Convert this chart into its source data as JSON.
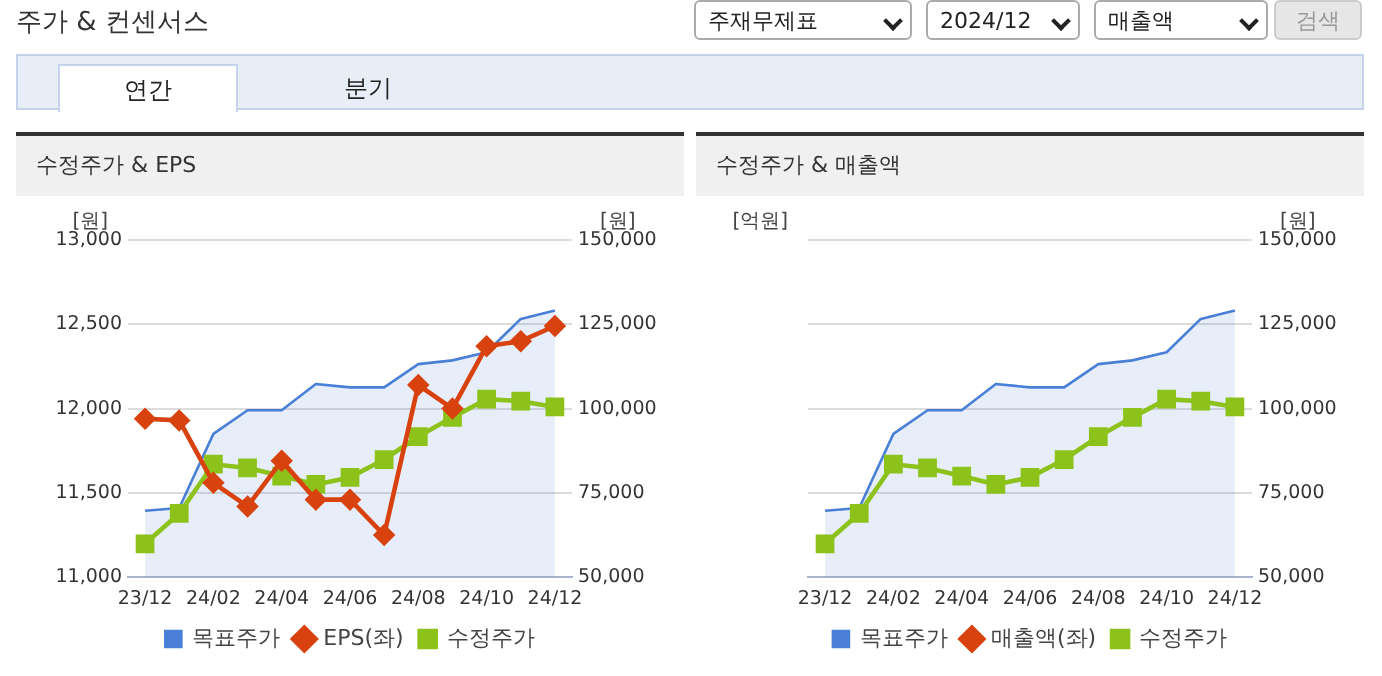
{
  "chart_data": [
    {
      "type": "other",
      "title": "주가 & 컨센서스",
      "annotations": [
        "주재무제표",
        "2024/12",
        "매출액",
        "검색",
        "연간",
        "분기"
      ]
    },
    {
      "type": "line",
      "title": "수정주가 & EPS",
      "ylabel": "[원]",
      "y2label": "[원]",
      "categories": [
        "23/12",
        null,
        "24/02",
        null,
        "24/04",
        null,
        "24/06",
        null,
        "24/08",
        null,
        "24/10",
        null,
        "24/12"
      ],
      "series": [
        {
          "name": "목표주가",
          "type": "area",
          "axis": "y2",
          "color": "#4a7fd8",
          "marker": "none",
          "values": [
            69700,
            70500,
            92500,
            99500,
            99500,
            107300,
            106300,
            106300,
            113200,
            114300,
            116700,
            126600,
            129100
          ]
        },
        {
          "name": "EPS(좌)",
          "type": "line",
          "axis": "y",
          "color": "#d8420e",
          "marker": "diamond",
          "values": [
            11940,
            11930,
            11560,
            11420,
            11690,
            11460,
            11460,
            11250,
            12140,
            12000,
            12370,
            12400,
            12490
          ]
        },
        {
          "name": "수정주가",
          "type": "line",
          "axis": "y2",
          "color": "#8cc21a",
          "marker": "square",
          "values": [
            59900,
            68900,
            83500,
            82400,
            80000,
            77500,
            79600,
            84900,
            91700,
            97400,
            102800,
            102200,
            100500
          ]
        }
      ],
      "ylim": [
        11000,
        13000
      ],
      "yticks": [
        {
          "value": 11000,
          "label": "11,000"
        },
        {
          "value": 11500,
          "label": "11,500"
        },
        {
          "value": 12000,
          "label": "12,000"
        },
        {
          "value": 12500,
          "label": "12,500"
        },
        {
          "value": 13000,
          "label": "13,000"
        }
      ],
      "y2lim": [
        50000,
        150000
      ],
      "y2ticks": [
        {
          "value": 50000,
          "label": "50,000"
        },
        {
          "value": 75000,
          "label": "75,000"
        },
        {
          "value": 100000,
          "label": "100,000"
        },
        {
          "value": 125000,
          "label": "125,000"
        },
        {
          "value": 150000,
          "label": "150,000"
        }
      ],
      "grid": "y",
      "legend": "bottom"
    },
    {
      "type": "line",
      "title": "수정주가 & 매출액",
      "ylabel": "[억원]",
      "y2label": "[원]",
      "categories": [
        "23/12",
        null,
        "24/02",
        null,
        "24/04",
        null,
        "24/06",
        null,
        "24/08",
        null,
        "24/10",
        null,
        "24/12"
      ],
      "series": [
        {
          "name": "목표주가",
          "type": "area",
          "axis": "y2",
          "color": "#4a7fd8",
          "marker": "none",
          "values": [
            69700,
            70500,
            92500,
            99500,
            99500,
            107300,
            106300,
            106300,
            113200,
            114300,
            116700,
            126600,
            129100
          ]
        },
        {
          "name": "매출액(좌)",
          "type": "line",
          "axis": "y",
          "color": "#d8420e",
          "marker": "diamond",
          "values": [
            null,
            null,
            null,
            null,
            null,
            null,
            null,
            null,
            null,
            null,
            null,
            null,
            null
          ]
        },
        {
          "name": "수정주가",
          "type": "line",
          "axis": "y2",
          "color": "#8cc21a",
          "marker": "square",
          "values": [
            59900,
            68900,
            83500,
            82400,
            80000,
            77500,
            79600,
            84900,
            91700,
            97400,
            102800,
            102200,
            100500
          ]
        }
      ],
      "y2lim": [
        50000,
        150000
      ],
      "y2ticks": [
        {
          "value": 50000,
          "label": "50,000"
        },
        {
          "value": 75000,
          "label": "75,000"
        },
        {
          "value": 100000,
          "label": "100,000"
        },
        {
          "value": 125000,
          "label": "125,000"
        },
        {
          "value": 150000,
          "label": "150,000"
        }
      ],
      "grid": "y",
      "legend": "bottom"
    }
  ]
}
